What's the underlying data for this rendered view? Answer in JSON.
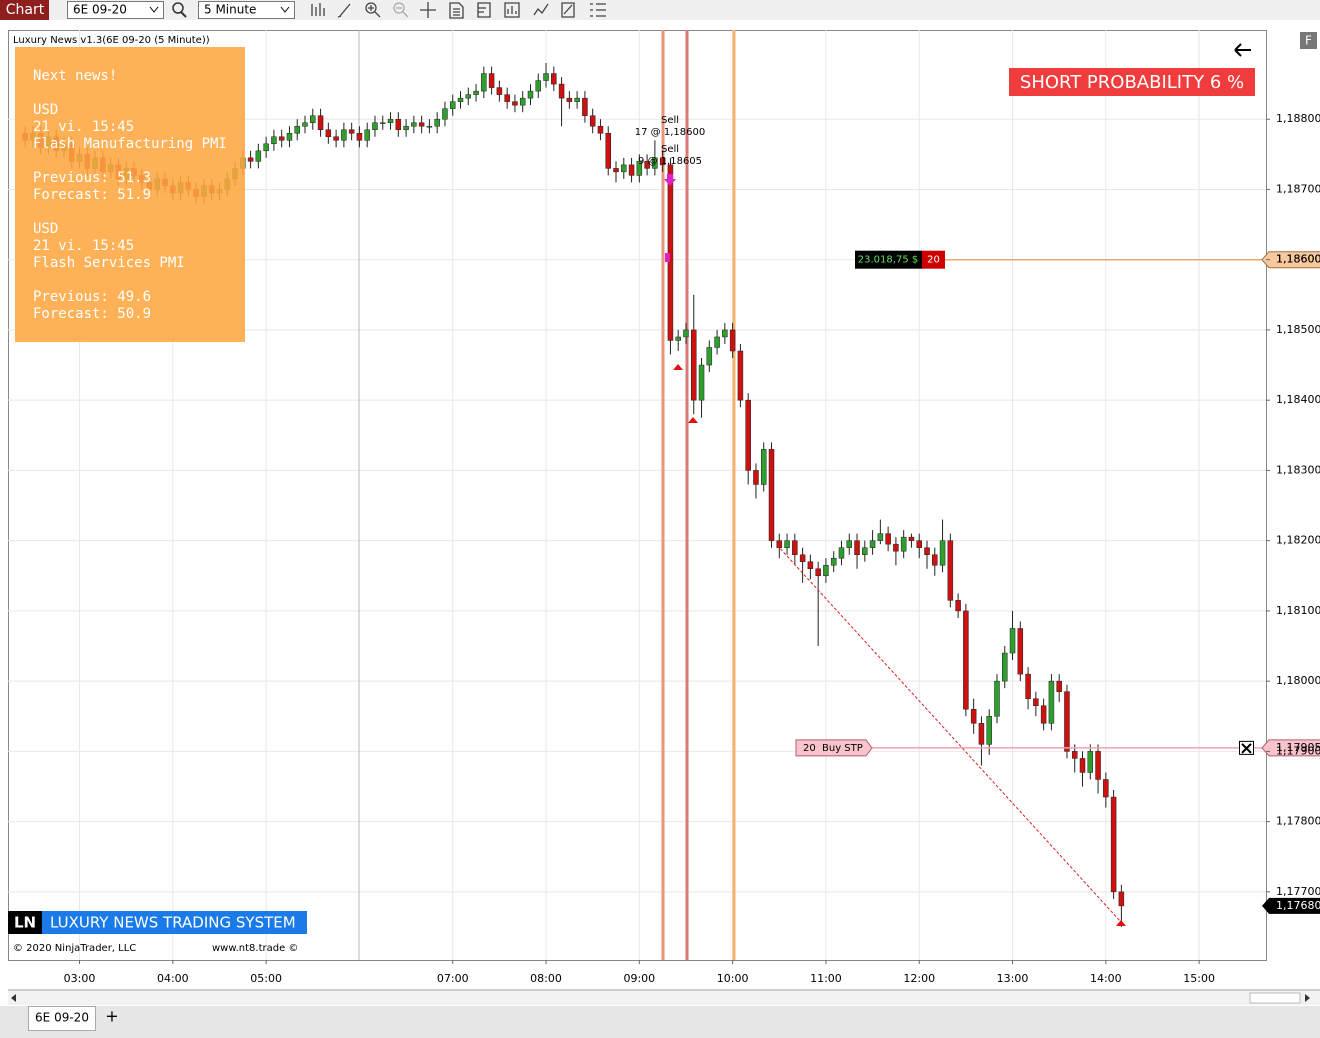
{
  "toolbar": {
    "title": "Chart",
    "instrument": "6E 09-20",
    "interval": "5 Minute"
  },
  "chart_data": {
    "type": "candlestick",
    "title": "Luxury News v1.3(6E 09-20 (5 Minute))",
    "x": [
      145,
      150,
      155,
      160,
      165,
      170,
      175,
      180,
      185,
      190,
      195,
      200,
      205,
      210,
      215,
      220,
      225,
      230,
      235,
      240,
      245,
      250,
      255,
      260,
      265,
      270,
      275,
      280,
      285,
      290,
      295,
      300,
      305,
      310,
      315,
      320,
      325,
      330,
      335,
      340,
      345,
      350,
      355,
      360,
      365,
      370,
      375,
      380,
      385,
      390,
      395,
      400,
      405,
      410,
      415,
      420,
      425,
      430,
      435,
      440,
      445,
      450,
      455,
      460,
      465,
      470,
      475,
      480,
      485,
      490,
      495,
      500,
      505,
      510,
      515,
      520,
      525,
      530,
      535,
      540,
      545,
      550,
      555,
      560,
      565,
      570,
      575,
      580,
      585,
      590,
      595,
      600,
      605,
      610,
      615,
      620,
      625,
      630,
      635,
      640,
      645,
      650,
      655,
      660,
      665,
      670,
      675,
      680,
      685,
      690,
      695,
      700,
      705,
      710,
      715,
      720,
      725,
      730,
      735,
      740,
      745,
      750,
      755,
      760,
      765,
      770,
      775,
      780,
      785,
      790,
      795,
      800,
      805,
      810,
      815,
      820,
      825,
      830,
      835,
      840,
      845,
      850
    ],
    "open": [
      1.1878,
      1.1877,
      1.1878,
      1.1876,
      1.18775,
      1.18755,
      1.18765,
      1.1874,
      1.1875,
      1.1873,
      1.18745,
      1.18725,
      1.18735,
      1.18715,
      1.1873,
      1.1872,
      1.1871,
      1.187,
      1.18715,
      1.18705,
      1.18695,
      1.1871,
      1.187,
      1.1869,
      1.18705,
      1.18695,
      1.187,
      1.18715,
      1.1873,
      1.18745,
      1.1874,
      1.18755,
      1.18765,
      1.18775,
      1.1877,
      1.1878,
      1.1879,
      1.18795,
      1.18805,
      1.18785,
      1.18775,
      1.1877,
      1.18785,
      1.1878,
      1.1877,
      1.18785,
      1.18795,
      1.18795,
      1.188,
      1.18785,
      1.1879,
      1.18795,
      1.1879,
      1.1879,
      1.188,
      1.18815,
      1.18825,
      1.1883,
      1.18835,
      1.1884,
      1.18865,
      1.18845,
      1.18835,
      1.18825,
      1.1882,
      1.1883,
      1.1884,
      1.18855,
      1.18865,
      1.1885,
      1.1883,
      1.18825,
      1.1883,
      1.18805,
      1.1879,
      1.1878,
      1.1873,
      1.18725,
      1.18735,
      1.1872,
      1.1874,
      1.1873,
      1.18745,
      1.18735,
      1.18485,
      1.1849,
      1.185,
      1.184,
      1.1845,
      1.18475,
      1.1849,
      1.185,
      1.1847,
      1.184,
      1.183,
      1.1828,
      1.1833,
      1.182,
      1.1819,
      1.182,
      1.1818,
      1.1817,
      1.1816,
      1.1815,
      1.18165,
      1.18175,
      1.1819,
      1.182,
      1.1818,
      1.1819,
      1.182,
      1.1821,
      1.18195,
      1.18185,
      1.18205,
      1.182,
      1.1819,
      1.1818,
      1.18165,
      1.182,
      1.18115,
      1.181,
      1.1796,
      1.1794,
      1.1791,
      1.1795,
      1.18,
      1.1804,
      1.18075,
      1.1801,
      1.17975,
      1.17965,
      1.1794,
      1.18,
      1.17985,
      1.179,
      1.1789,
      1.1787,
      1.179,
      1.1786,
      1.17835,
      1.177
    ],
    "high": [
      1.1879,
      1.1879,
      1.1879,
      1.18785,
      1.18785,
      1.18775,
      1.18775,
      1.1876,
      1.1876,
      1.18755,
      1.18755,
      1.18745,
      1.18745,
      1.1874,
      1.1874,
      1.1873,
      1.1872,
      1.18725,
      1.18725,
      1.18715,
      1.1872,
      1.1872,
      1.1871,
      1.18715,
      1.18715,
      1.1871,
      1.18725,
      1.1874,
      1.18755,
      1.18755,
      1.18765,
      1.18775,
      1.18785,
      1.18785,
      1.1879,
      1.188,
      1.18805,
      1.18815,
      1.18815,
      1.18795,
      1.18785,
      1.18795,
      1.18795,
      1.1879,
      1.18795,
      1.18805,
      1.18805,
      1.1881,
      1.1881,
      1.188,
      1.18805,
      1.18805,
      1.188,
      1.1881,
      1.18825,
      1.18835,
      1.1884,
      1.18845,
      1.1885,
      1.18875,
      1.18875,
      1.18855,
      1.18845,
      1.18835,
      1.1884,
      1.1885,
      1.18865,
      1.1888,
      1.18875,
      1.1886,
      1.1884,
      1.1884,
      1.1884,
      1.18815,
      1.188,
      1.1879,
      1.1874,
      1.18745,
      1.18745,
      1.1875,
      1.1875,
      1.1877,
      1.18755,
      1.18745,
      1.185,
      1.1851,
      1.1855,
      1.1846,
      1.18485,
      1.185,
      1.1851,
      1.1851,
      1.1848,
      1.1841,
      1.1831,
      1.1834,
      1.1834,
      1.1821,
      1.1821,
      1.1821,
      1.1819,
      1.1818,
      1.1817,
      1.18175,
      1.18185,
      1.182,
      1.1821,
      1.1821,
      1.182,
      1.18215,
      1.1823,
      1.1822,
      1.18205,
      1.18215,
      1.1821,
      1.1821,
      1.182,
      1.1819,
      1.1823,
      1.1821,
      1.18125,
      1.1811,
      1.17975,
      1.1795,
      1.1796,
      1.1801,
      1.1805,
      1.181,
      1.18085,
      1.1802,
      1.17985,
      1.17975,
      1.1801,
      1.1801,
      1.17995,
      1.1791,
      1.179,
      1.1791,
      1.1791,
      1.1787,
      1.17845,
      1.1771
    ],
    "low": [
      1.1876,
      1.1876,
      1.1875,
      1.1875,
      1.18745,
      1.18745,
      1.1873,
      1.1873,
      1.1872,
      1.1872,
      1.18715,
      1.18715,
      1.18705,
      1.18705,
      1.1871,
      1.187,
      1.1869,
      1.1869,
      1.18695,
      1.18685,
      1.18685,
      1.1869,
      1.1868,
      1.1868,
      1.18685,
      1.18685,
      1.1869,
      1.18705,
      1.1872,
      1.1873,
      1.1873,
      1.18745,
      1.18755,
      1.1876,
      1.1876,
      1.1877,
      1.1878,
      1.18785,
      1.18775,
      1.18765,
      1.1876,
      1.1876,
      1.1877,
      1.1876,
      1.1876,
      1.18775,
      1.18785,
      1.18785,
      1.18775,
      1.18775,
      1.1878,
      1.1878,
      1.1878,
      1.1878,
      1.1879,
      1.18805,
      1.18815,
      1.1882,
      1.18825,
      1.1883,
      1.18835,
      1.18825,
      1.18815,
      1.1881,
      1.1881,
      1.1882,
      1.1883,
      1.18845,
      1.1884,
      1.1879,
      1.18815,
      1.18815,
      1.18795,
      1.1878,
      1.1877,
      1.1872,
      1.1871,
      1.18715,
      1.1871,
      1.1871,
      1.1872,
      1.1872,
      1.18725,
      1.18465,
      1.1847,
      1.1848,
      1.1838,
      1.18375,
      1.1844,
      1.18465,
      1.1848,
      1.1846,
      1.1839,
      1.1828,
      1.1826,
      1.1827,
      1.1819,
      1.18175,
      1.1818,
      1.18165,
      1.1814,
      1.18145,
      1.1805,
      1.1814,
      1.18155,
      1.18165,
      1.1818,
      1.1816,
      1.1817,
      1.1818,
      1.18195,
      1.18185,
      1.18165,
      1.18175,
      1.1819,
      1.18175,
      1.1816,
      1.1815,
      1.18155,
      1.18105,
      1.1809,
      1.1795,
      1.17925,
      1.1788,
      1.17895,
      1.1794,
      1.1799,
      1.1803,
      1.18,
      1.1796,
      1.1795,
      1.1793,
      1.1793,
      1.1797,
      1.1789,
      1.1787,
      1.1785,
      1.1786,
      1.1784,
      1.1782,
      1.1769,
      1.1765
    ],
    "close": [
      1.1877,
      1.1878,
      1.1876,
      1.18775,
      1.18755,
      1.18765,
      1.1874,
      1.1875,
      1.1873,
      1.18745,
      1.18725,
      1.18735,
      1.18715,
      1.1873,
      1.1872,
      1.1871,
      1.187,
      1.18715,
      1.18705,
      1.18695,
      1.1871,
      1.187,
      1.1869,
      1.18705,
      1.18695,
      1.187,
      1.18715,
      1.1873,
      1.18745,
      1.1874,
      1.18755,
      1.18765,
      1.18775,
      1.1877,
      1.1878,
      1.1879,
      1.18795,
      1.18805,
      1.18785,
      1.18775,
      1.1877,
      1.18785,
      1.1878,
      1.1877,
      1.18785,
      1.18795,
      1.18795,
      1.188,
      1.18785,
      1.1879,
      1.18795,
      1.1879,
      1.1879,
      1.188,
      1.18815,
      1.18825,
      1.1883,
      1.18835,
      1.1884,
      1.18865,
      1.18845,
      1.18835,
      1.18825,
      1.1882,
      1.1883,
      1.1884,
      1.18855,
      1.18865,
      1.1885,
      1.1883,
      1.18825,
      1.1883,
      1.18805,
      1.1879,
      1.1878,
      1.1873,
      1.18725,
      1.18735,
      1.1872,
      1.1874,
      1.1873,
      1.18745,
      1.18735,
      1.18485,
      1.1849,
      1.185,
      1.184,
      1.1845,
      1.18475,
      1.1849,
      1.185,
      1.1847,
      1.184,
      1.183,
      1.1828,
      1.1833,
      1.182,
      1.1819,
      1.182,
      1.1818,
      1.1817,
      1.1816,
      1.1815,
      1.18165,
      1.18175,
      1.1819,
      1.182,
      1.1818,
      1.1819,
      1.182,
      1.1821,
      1.18195,
      1.18185,
      1.18205,
      1.182,
      1.1819,
      1.1818,
      1.18165,
      1.182,
      1.18115,
      1.181,
      1.1796,
      1.1794,
      1.1791,
      1.1795,
      1.18,
      1.1804,
      1.18075,
      1.1801,
      1.17975,
      1.17965,
      1.1794,
      1.18,
      1.17985,
      1.179,
      1.1789,
      1.1787,
      1.179,
      1.1786,
      1.17835,
      1.177,
      1.1768
    ],
    "up_color": "#2f9e2f",
    "down_color": "#cc1111",
    "xlim": [
      134,
      943
    ],
    "xticks": [
      {
        "value": 180,
        "label": "03:00"
      },
      {
        "value": 240,
        "label": "04:00"
      },
      {
        "value": 300,
        "label": "05:00"
      },
      {
        "value": 420,
        "label": "07:00"
      },
      {
        "value": 480,
        "label": "08:00"
      },
      {
        "value": 540,
        "label": "09:00"
      },
      {
        "value": 600,
        "label": "10:00"
      },
      {
        "value": 660,
        "label": "11:00"
      },
      {
        "value": 720,
        "label": "12:00"
      },
      {
        "value": 780,
        "label": "13:00"
      },
      {
        "value": 840,
        "label": "14:00"
      },
      {
        "value": 900,
        "label": "15:00"
      }
    ],
    "ylim": [
      1.17603,
      1.18927
    ],
    "yticks": [
      {
        "value": 1.188,
        "label": "1,18800"
      },
      {
        "value": 1.187,
        "label": "1,18700"
      },
      {
        "value": 1.186,
        "label": "1,18600"
      },
      {
        "value": 1.185,
        "label": "1,18500"
      },
      {
        "value": 1.184,
        "label": "1,18400"
      },
      {
        "value": 1.183,
        "label": "1,18300"
      },
      {
        "value": 1.182,
        "label": "1,18200"
      },
      {
        "value": 1.181,
        "label": "1,18100"
      },
      {
        "value": 1.18,
        "label": "1,18000"
      },
      {
        "value": 1.179,
        "label": "1,17900"
      },
      {
        "value": 1.178,
        "label": "1,17800"
      },
      {
        "value": 1.177,
        "label": "1,17700"
      }
    ],
    "grid": true,
    "position": {
      "value": 1.186,
      "label": "1,18600",
      "pnl": "23.018,75 $",
      "quantity": 20
    },
    "order": {
      "value": 1.17905,
      "label": "1,17905",
      "quantity": 20,
      "type": "Buy STP"
    },
    "last_price": {
      "value": 1.1768,
      "label": "1,17680"
    },
    "executions": [
      {
        "action": "Sell",
        "fill": "17 @ 1,18600"
      },
      {
        "action": "Sell",
        "fill": "9 @ 1,18605"
      }
    ],
    "signal": "SHORT PROBABILITY 6 %"
  },
  "news": {
    "heading": "Next news!",
    "items": [
      {
        "currency": "USD",
        "time": "21 vi. 15:45",
        "event": "Flash Manufacturing PMI",
        "previous": "Previous: 51.3",
        "forecast": "Forecast: 51.9"
      },
      {
        "currency": "USD",
        "time": "21 vi. 15:45",
        "event": "Flash Services PMI",
        "previous": "Previous: 49.6",
        "forecast": "Forecast: 50.9"
      }
    ]
  },
  "branding": {
    "badge": "LN",
    "name": "LUXURY NEWS TRADING SYSTEM",
    "copyright": "© 2020 NinjaTrader, LLC",
    "website": "www.nt8.trade ©"
  },
  "controls": {
    "float_button": "F"
  },
  "tabs": {
    "active": "6E 09-20",
    "add": "+"
  }
}
